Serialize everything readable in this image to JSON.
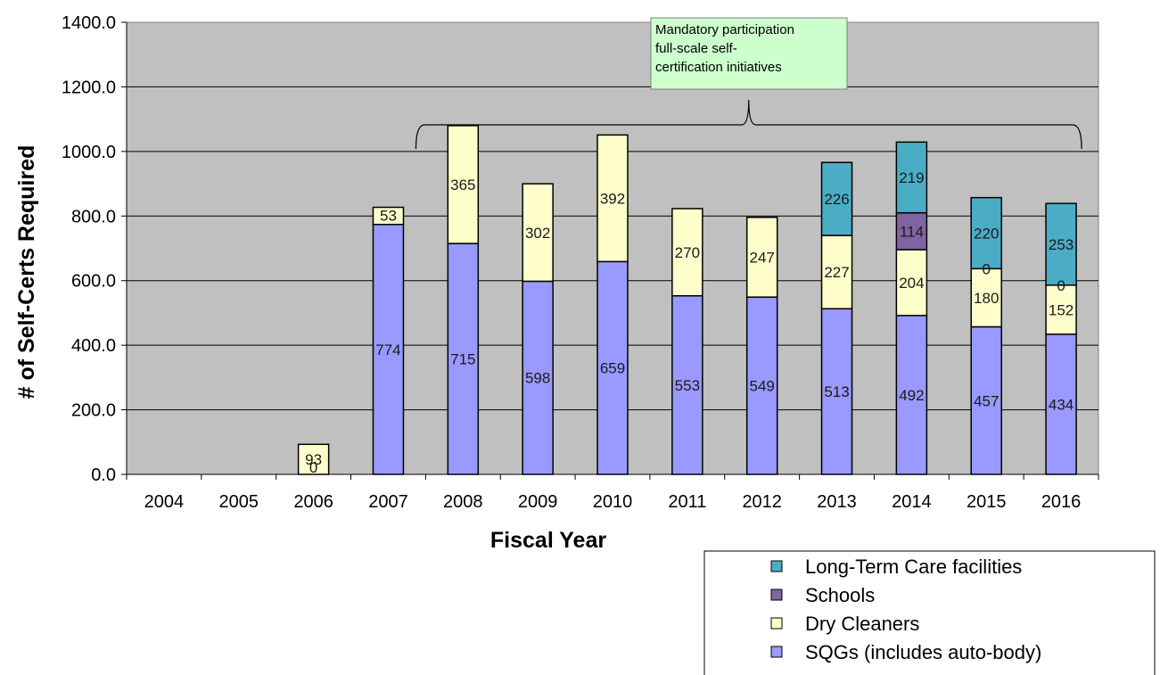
{
  "chart_data": {
    "type": "bar",
    "stacked": true,
    "xlabel": "Fiscal Year",
    "ylabel": "# of Self-Certs Required",
    "ylim": [
      0,
      1400
    ],
    "yticks": [
      "0.0",
      "200.0",
      "400.0",
      "600.0",
      "800.0",
      "1000.0",
      "1200.0",
      "1400.0"
    ],
    "grid": true,
    "categories": [
      "2004",
      "2005",
      "2006",
      "2007",
      "2008",
      "2009",
      "2010",
      "2011",
      "2012",
      "2013",
      "2014",
      "2015",
      "2016"
    ],
    "series": [
      {
        "name": "SQGs (includes auto-body)",
        "color": "#9999FF",
        "values": [
          0,
          0,
          0,
          774,
          715,
          598,
          659,
          553,
          549,
          513,
          492,
          457,
          434
        ],
        "labels": [
          "",
          "",
          "0",
          "774",
          "715",
          "598",
          "659",
          "553",
          "549",
          "513",
          "492",
          "457",
          "434"
        ]
      },
      {
        "name": "Dry Cleaners",
        "color": "#FFFFCC",
        "values": [
          0,
          0,
          93,
          53,
          365,
          302,
          392,
          270,
          247,
          227,
          204,
          180,
          152
        ],
        "labels": [
          "",
          "",
          "93",
          "53",
          "365",
          "302",
          "392",
          "270",
          "247",
          "227",
          "204",
          "180",
          "152"
        ]
      },
      {
        "name": "Schools",
        "color": "#8064A2",
        "values": [
          0,
          0,
          0,
          0,
          0,
          0,
          0,
          0,
          0,
          0,
          114,
          0,
          0
        ],
        "labels": [
          "",
          "",
          "",
          "",
          "",
          "",
          "",
          "",
          "",
          "",
          "114",
          "0",
          "0"
        ]
      },
      {
        "name": "Long-Term Care facilities",
        "color": "#4BACC6",
        "values": [
          0,
          0,
          0,
          0,
          0,
          0,
          0,
          0,
          0,
          226,
          219,
          220,
          253
        ],
        "labels": [
          "",
          "",
          "",
          "",
          "",
          "",
          "",
          "",
          "",
          "226",
          "219",
          "220",
          "253"
        ]
      }
    ],
    "legend_position": "bottom-right",
    "legend_order": [
      "Long-Term Care facilities",
      "Schools",
      "Dry Cleaners",
      "SQGs (includes auto-body)"
    ],
    "annotation": {
      "lines": [
        "Mandatory participation",
        "full-scale self-",
        "certification initiatives"
      ],
      "span_categories": [
        "2007",
        "2016"
      ],
      "box_color": "#CCFFCC"
    },
    "plot_background": "#C0C0C0"
  }
}
